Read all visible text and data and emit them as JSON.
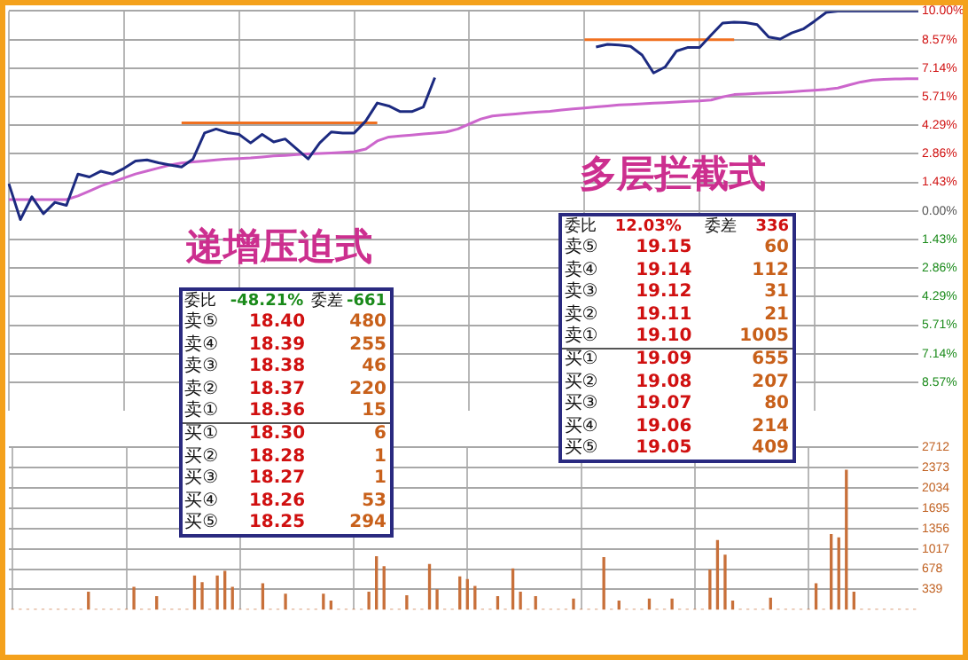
{
  "chart_data": [
    {
      "type": "line",
      "categories": [
        null,
        null,
        null,
        null,
        null,
        null,
        null,
        null,
        null,
        null,
        null,
        null,
        null,
        null,
        null,
        null,
        null,
        null,
        null,
        null,
        null,
        null,
        null,
        null,
        null,
        null,
        null,
        null,
        null,
        null,
        null,
        null,
        null,
        null,
        null,
        null,
        null,
        null,
        null,
        null,
        null,
        null,
        null,
        null,
        null,
        null,
        null,
        null,
        null,
        null,
        null,
        null,
        null,
        null,
        null,
        null,
        null,
        null,
        null,
        null,
        null,
        null,
        null,
        null,
        null,
        null,
        null,
        null,
        null,
        null,
        null,
        null,
        null,
        null,
        null,
        null,
        null,
        null,
        null,
        null
      ],
      "ylim": [
        -10,
        10
      ],
      "yticks": [
        {
          "value": 10,
          "label": "10.00%"
        },
        {
          "value": 8.57,
          "label": "8.57%"
        },
        {
          "value": 7.14,
          "label": "7.14%"
        },
        {
          "value": 5.71,
          "label": "5.71%"
        },
        {
          "value": 4.29,
          "label": "4.29%"
        },
        {
          "value": 2.86,
          "label": "2.86%"
        },
        {
          "value": 1.43,
          "label": "1.43%"
        },
        {
          "value": 0,
          "label": "0.00%"
        },
        {
          "value": -1.43,
          "label": "1.43%"
        },
        {
          "value": -2.86,
          "label": "2.86%"
        },
        {
          "value": -4.29,
          "label": "4.29%"
        },
        {
          "value": -5.71,
          "label": "5.71%"
        },
        {
          "value": -7.14,
          "label": "7.14%"
        },
        {
          "value": -8.57,
          "label": "8.57%"
        }
      ],
      "grid": true,
      "series": [
        {
          "color": "#1c2a80",
          "values": [
            1.36,
            -0.43,
            0.71,
            -0.14,
            0.43,
            0.28,
            1.84,
            1.7,
            1.99,
            1.84,
            2.13,
            2.5,
            2.55,
            2.41,
            2.3,
            2.2,
            2.6,
            3.9,
            4.1,
            3.92,
            3.83,
            3.4,
            3.83,
            3.45,
            3.6,
            3.1,
            2.6,
            3.4,
            3.95,
            3.9,
            3.9,
            4.5,
            5.4,
            5.25,
            4.97,
            4.97,
            5.2,
            6.67,
            null,
            null,
            null,
            null,
            null,
            null,
            null,
            null,
            null,
            null,
            null,
            null,
            null,
            8.2,
            8.33,
            8.3,
            8.23,
            7.8,
            6.9,
            7.2,
            8.0,
            8.18,
            8.18,
            8.8,
            9.4,
            9.44,
            9.42,
            9.32,
            8.7,
            8.6,
            8.9,
            9.1,
            9.5,
            9.93,
            10,
            10,
            10,
            10,
            10,
            10,
            10,
            10
          ]
        },
        {
          "color": "#cc66cc",
          "values": [
            0.57,
            0.57,
            0.57,
            0.57,
            0.57,
            0.57,
            0.75,
            1.0,
            1.25,
            1.45,
            1.65,
            1.85,
            2.0,
            2.15,
            2.3,
            2.4,
            2.45,
            2.5,
            2.55,
            2.6,
            2.62,
            2.65,
            2.7,
            2.75,
            2.78,
            2.82,
            2.85,
            2.88,
            2.9,
            2.93,
            2.96,
            3.1,
            3.5,
            3.7,
            3.75,
            3.8,
            3.85,
            3.9,
            3.95,
            4.1,
            4.35,
            4.6,
            4.75,
            4.8,
            4.85,
            4.9,
            4.95,
            4.98,
            5.05,
            5.1,
            5.15,
            5.2,
            5.25,
            5.3,
            5.33,
            5.36,
            5.39,
            5.42,
            5.45,
            5.48,
            5.5,
            5.55,
            5.7,
            5.82,
            5.85,
            5.88,
            5.9,
            5.93,
            5.96,
            6.0,
            6.04,
            6.08,
            6.15,
            6.3,
            6.45,
            6.55,
            6.58,
            6.6,
            6.61,
            6.61
          ]
        },
        {
          "color": "#f07020",
          "values": [
            null,
            null,
            null,
            null,
            null,
            null,
            null,
            null,
            null,
            null,
            null,
            null,
            null,
            null,
            null,
            4.4,
            4.4,
            4.4,
            4.4,
            4.4,
            4.4,
            4.4,
            4.4,
            4.4,
            4.4,
            4.4,
            4.4,
            4.4,
            4.4,
            4.4,
            4.4,
            4.4,
            4.4,
            null,
            null,
            null,
            null,
            null,
            null,
            null,
            null,
            null,
            null,
            null,
            null,
            null,
            null,
            null,
            null,
            null,
            null,
            null,
            null,
            null,
            null,
            null,
            null,
            null,
            null,
            null,
            null,
            null,
            null,
            null,
            null,
            null,
            null,
            null,
            null,
            null,
            null,
            null,
            null,
            null,
            null,
            null,
            null,
            null,
            null,
            null
          ]
        },
        {
          "color": "#f07020",
          "values": [
            null,
            null,
            null,
            null,
            null,
            null,
            null,
            null,
            null,
            null,
            null,
            null,
            null,
            null,
            null,
            null,
            null,
            null,
            null,
            null,
            null,
            null,
            null,
            null,
            null,
            null,
            null,
            null,
            null,
            null,
            null,
            null,
            null,
            null,
            null,
            null,
            null,
            null,
            null,
            null,
            null,
            null,
            null,
            null,
            null,
            null,
            null,
            null,
            null,
            null,
            8.57,
            8.57,
            8.57,
            8.57,
            8.57,
            8.57,
            8.57,
            8.57,
            8.57,
            8.57,
            8.57,
            8.57,
            8.57,
            8.57,
            null,
            null,
            null,
            null,
            null,
            null,
            null,
            null,
            null,
            null,
            null,
            null,
            null,
            null,
            null,
            null
          ]
        }
      ],
      "annotations": [
        "递增压迫式",
        "委比 -48.21% 委差 -661",
        "卖⑤ 18.40 480",
        "卖④ 18.39 255",
        "卖③ 18.38 46",
        "卖② 18.37 220",
        "卖① 18.36 15",
        "买① 18.30 6",
        "买② 18.28 1",
        "买③ 18.27 1",
        "买④ 18.26 53",
        "买⑤ 18.25 294",
        "多层拦截式",
        "委比 12.03% 委差 336",
        "卖⑤ 19.15 60",
        "卖④ 19.14 112",
        "卖③ 19.12 31",
        "卖② 19.11 21",
        "卖① 19.10 1005",
        "买① 19.09 655",
        "买② 19.08 207",
        "买③ 19.07 80",
        "买④ 19.06 214",
        "买⑤ 19.05 409"
      ]
    },
    {
      "type": "bar",
      "color": "#c8703a",
      "categories": [
        null,
        null,
        null,
        null,
        null,
        null,
        null,
        null,
        null,
        null,
        null,
        null,
        null,
        null,
        null,
        null,
        null,
        null,
        null,
        null,
        null,
        null,
        null,
        null,
        null,
        null,
        null,
        null,
        null,
        null,
        null,
        null,
        null,
        null,
        null,
        null,
        null,
        null,
        null,
        null,
        null,
        null,
        null,
        null,
        null,
        null,
        null,
        null,
        null,
        null,
        null,
        null,
        null,
        null,
        null,
        null,
        null,
        null,
        null,
        null,
        null,
        null,
        null,
        null,
        null,
        null,
        null,
        null,
        null,
        null,
        null,
        null,
        null,
        null,
        null,
        null,
        null,
        null,
        null,
        null,
        null,
        null,
        null,
        null,
        null,
        null,
        null,
        null,
        null,
        null,
        null,
        null,
        null,
        null,
        null,
        null,
        null,
        null,
        null,
        null,
        null,
        null,
        null,
        null,
        null,
        null,
        null,
        null,
        null,
        null,
        null,
        null,
        null,
        null,
        null,
        null,
        null,
        null,
        null,
        null
      ],
      "ylim": [
        0,
        2712
      ],
      "yticks": [
        339,
        678,
        1017,
        1356,
        1695,
        2034,
        2373,
        2712
      ],
      "grid": true,
      "values": [
        0,
        0,
        0,
        0,
        0,
        0,
        0,
        0,
        0,
        0,
        290,
        0,
        0,
        0,
        0,
        0,
        370,
        0,
        0,
        215,
        0,
        0,
        0,
        0,
        560,
        450,
        0,
        560,
        640,
        370,
        0,
        0,
        0,
        430,
        0,
        0,
        255,
        0,
        0,
        0,
        0,
        255,
        140,
        0,
        0,
        0,
        0,
        290,
        885,
        715,
        0,
        0,
        230,
        0,
        0,
        755,
        330,
        0,
        0,
        545,
        500,
        385,
        0,
        0,
        215,
        0,
        680,
        290,
        0,
        215,
        0,
        0,
        0,
        0,
        175,
        0,
        0,
        0,
        870,
        0,
        140,
        0,
        0,
        0,
        175,
        0,
        0,
        175,
        0,
        0,
        0,
        0,
        660,
        1155,
        910,
        140,
        0,
        0,
        0,
        0,
        190,
        0,
        0,
        0,
        0,
        0,
        430,
        0,
        1255,
        1200,
        2330,
        290,
        0,
        0,
        0,
        0,
        0,
        0,
        0,
        0
      ]
    }
  ]
}
